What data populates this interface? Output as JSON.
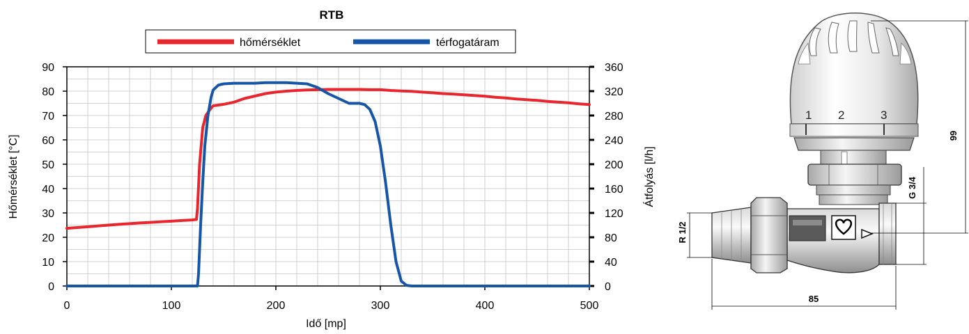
{
  "chart_data": {
    "type": "line",
    "title": "RTB",
    "xlabel": "Idő [mp]",
    "ylabel": "Hőmérséklet [°C]",
    "y2label": "Átfolyás [l/h]",
    "xlim": [
      0,
      500
    ],
    "ylim": [
      0,
      90
    ],
    "y2lim": [
      0,
      360
    ],
    "x_ticks": [
      0,
      100,
      200,
      300,
      400,
      500
    ],
    "y_ticks": [
      0,
      10,
      20,
      30,
      40,
      50,
      60,
      70,
      80,
      90
    ],
    "y2_ticks": [
      0,
      40,
      80,
      120,
      160,
      200,
      240,
      280,
      320,
      360
    ],
    "grid": true,
    "legend_position": "top",
    "series": [
      {
        "name": "hőmérséklet",
        "color": "#e8262d",
        "axis": "left",
        "x": [
          0,
          10,
          20,
          30,
          40,
          50,
          60,
          70,
          80,
          90,
          100,
          110,
          120,
          124,
          125,
          127,
          130,
          133,
          137,
          140,
          145,
          150,
          160,
          170,
          180,
          190,
          200,
          210,
          220,
          230,
          240,
          250,
          260,
          270,
          280,
          290,
          300,
          310,
          320,
          330,
          340,
          350,
          360,
          370,
          380,
          390,
          400,
          410,
          420,
          430,
          440,
          450,
          460,
          470,
          480,
          490,
          500
        ],
        "values": [
          23.7,
          24.0,
          24.3,
          24.7,
          25.0,
          25.3,
          25.6,
          25.9,
          26.1,
          26.4,
          26.6,
          26.9,
          27.1,
          27.3,
          32,
          50,
          65,
          70,
          72.5,
          74,
          74.3,
          74.6,
          75.5,
          77,
          78,
          79,
          79.6,
          80.0,
          80.3,
          80.5,
          80.6,
          80.7,
          80.7,
          80.7,
          80.7,
          80.6,
          80.6,
          80.3,
          80.1,
          79.9,
          79.6,
          79.3,
          79.0,
          78.8,
          78.5,
          78.2,
          77.9,
          77.5,
          77.2,
          76.8,
          76.5,
          76.2,
          75.8,
          75.5,
          75.2,
          74.8,
          74.5
        ]
      },
      {
        "name": "térfogatáram",
        "color": "#1756a6",
        "axis": "right",
        "x": [
          0,
          50,
          100,
          125,
          126,
          128,
          130,
          132,
          135,
          138,
          140,
          145,
          150,
          160,
          170,
          180,
          190,
          200,
          210,
          220,
          230,
          240,
          250,
          260,
          270,
          275,
          280,
          285,
          290,
          295,
          300,
          305,
          310,
          315,
          320,
          325,
          330,
          350,
          400,
          450,
          500
        ],
        "values": [
          0,
          0,
          0,
          0,
          20,
          100,
          170,
          230,
          280,
          310,
          322,
          330,
          332,
          333,
          333,
          333,
          334,
          334,
          334,
          333,
          332,
          326,
          316,
          308,
          300,
          300,
          300,
          298,
          290,
          270,
          230,
          170,
          100,
          40,
          8,
          1,
          0,
          0,
          0,
          0,
          0
        ]
      }
    ]
  },
  "diagram": {
    "dial_marks": [
      "1",
      "2",
      "3"
    ],
    "dim_height": "99",
    "dim_outlet": "G 3/4",
    "dim_inlet": "R 1/2",
    "dim_length": "85"
  }
}
